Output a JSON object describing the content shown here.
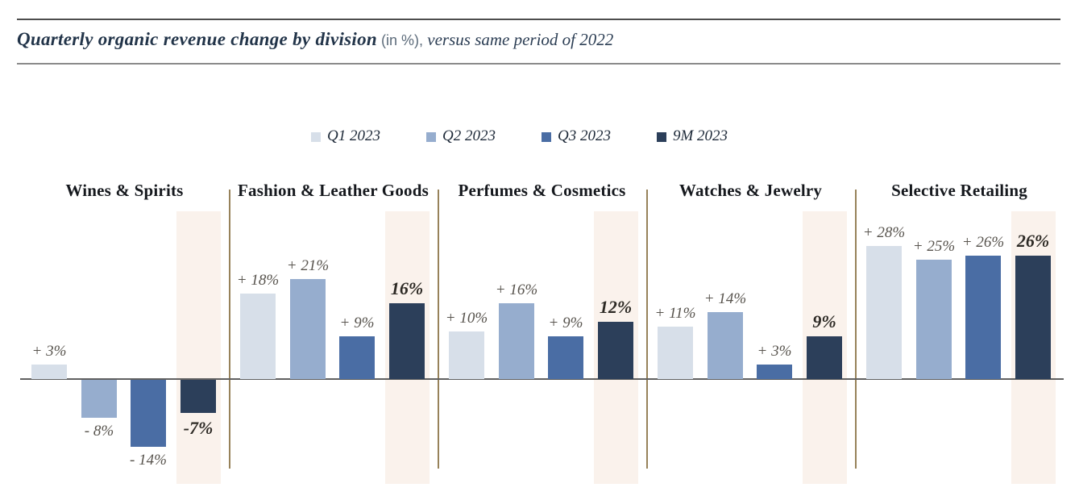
{
  "header": {
    "title_main": "Quarterly organic revenue change by division",
    "title_unit": "(in %),",
    "title_suffix": "versus same period of 2022"
  },
  "legend": {
    "items": [
      {
        "label": "Q1 2023",
        "color": "#d7dfe9"
      },
      {
        "label": "Q2 2023",
        "color": "#96adce"
      },
      {
        "label": "Q3 2023",
        "color": "#4a6da4"
      },
      {
        "label": "9M 2023",
        "color": "#2c3f5a"
      }
    ]
  },
  "chart_data": {
    "type": "bar",
    "title": "Quarterly organic revenue change by division (in %), versus same period of 2022",
    "unit": "%",
    "grid": false,
    "legend_position": "top",
    "baseline_value": 0,
    "ylim": [
      -17,
      31
    ],
    "categories": [
      "Wines & Spirits",
      "Fashion & Leather Goods",
      "Perfumes & Cosmetics",
      "Watches & Jewelry",
      "Selective Retailing"
    ],
    "series": [
      {
        "name": "Q1 2023",
        "values": [
          3,
          18,
          10,
          11,
          28
        ]
      },
      {
        "name": "Q2 2023",
        "values": [
          -8,
          21,
          16,
          14,
          25
        ]
      },
      {
        "name": "Q3 2023",
        "values": [
          -14,
          9,
          9,
          3,
          26
        ]
      },
      {
        "name": "9M 2023",
        "values": [
          -7,
          16,
          12,
          9,
          26
        ]
      }
    ],
    "value_labels": [
      [
        "+ 3%",
        "- 8%",
        "- 14%",
        "-7%"
      ],
      [
        "+ 18%",
        "+ 21%",
        "+ 9%",
        "16%"
      ],
      [
        "+ 10%",
        "+ 16%",
        "+ 9%",
        "12%"
      ],
      [
        "+ 11%",
        "+ 14%",
        "+ 3%",
        "9%"
      ],
      [
        "+ 28%",
        "+ 25%",
        "+ 26%",
        "26%"
      ]
    ],
    "highlighted_series": "9M 2023"
  },
  "style": {
    "series_colors": [
      "#d7dfe9",
      "#96adce",
      "#4a6da4",
      "#2c3f5a"
    ],
    "highlight_band_color": "#faf2ec",
    "divider_color": "#97825a",
    "axis_color": "#606060"
  }
}
